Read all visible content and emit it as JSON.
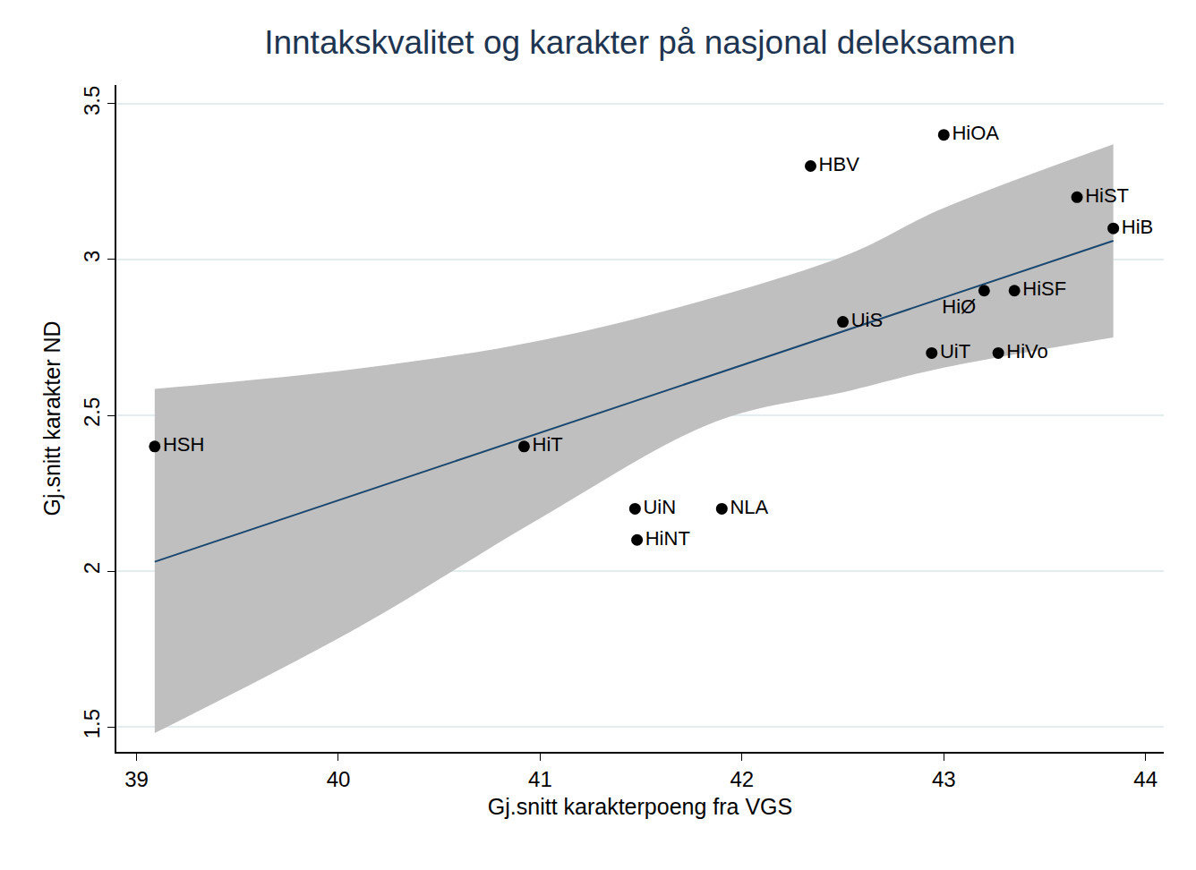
{
  "chart_data": {
    "type": "scatter",
    "title": "Inntakskvalitet og karakter på nasjonal deleksamen",
    "x_label": "Gj.snitt karakterpoeng fra VGS",
    "y_label": "Gj.snitt karakter ND",
    "labels": [
      "HSH",
      "HiT",
      "UiN",
      "HiNT",
      "NLA",
      "HBV",
      "UiS",
      "UiT",
      "HiOA",
      "HiØ",
      "HiVo",
      "HiSF",
      "HiST",
      "HiB"
    ],
    "x": [
      39.09,
      40.92,
      41.47,
      41.48,
      41.9,
      42.34,
      42.5,
      42.94,
      43.0,
      43.2,
      43.27,
      43.35,
      43.66,
      43.84
    ],
    "values": [
      2.4,
      2.4,
      2.2,
      2.1,
      2.2,
      3.3,
      2.8,
      2.7,
      3.4,
      2.9,
      2.7,
      2.9,
      3.2,
      3.1
    ],
    "color": "#000000",
    "fit": {
      "x": [
        39.09,
        43.84
      ],
      "values": [
        2.03,
        3.06
      ],
      "color": "#1a476f"
    },
    "band": {
      "x": [
        39.09,
        40.1,
        41.0,
        41.87,
        42.54,
        42.98,
        43.84
      ],
      "lower": [
        1.48,
        1.82,
        2.17,
        2.48,
        2.58,
        2.65,
        2.75
      ],
      "upper": [
        2.585,
        2.65,
        2.74,
        2.88,
        3.02,
        3.16,
        3.37
      ],
      "color": "#bfbfbf"
    },
    "xlim": [
      38.9,
      44.09
    ],
    "xticks": [
      39,
      40,
      41,
      42,
      43,
      44
    ],
    "ylim": [
      1.42,
      3.56
    ],
    "yticks": [
      1.5,
      2,
      2.5,
      3,
      3.5
    ],
    "grid": true
  }
}
